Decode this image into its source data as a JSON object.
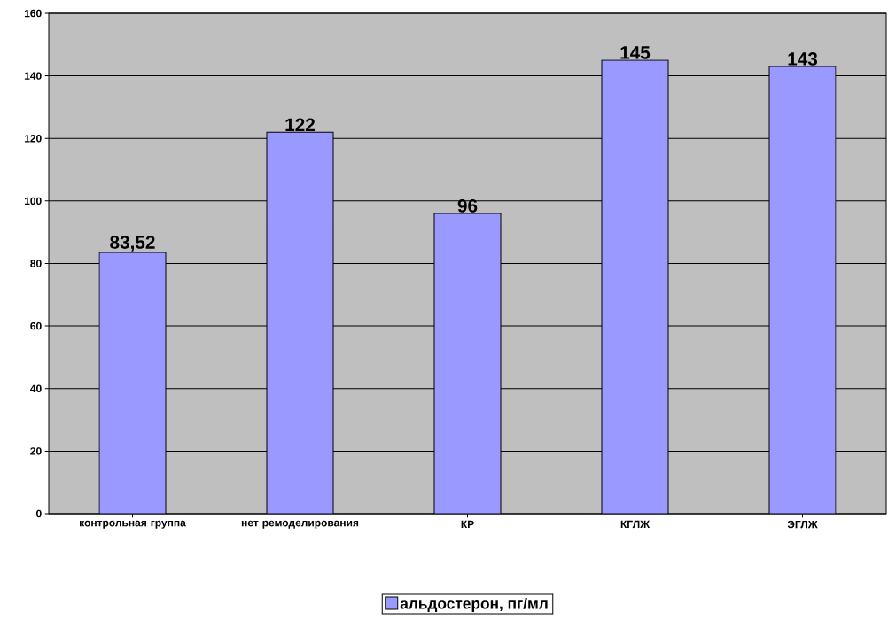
{
  "chart_data": {
    "type": "bar",
    "categories": [
      "контрольная группа",
      "нет ремоделирования",
      "КР",
      "КГЛЖ",
      "ЭГЛЖ"
    ],
    "series": [
      {
        "name": "альдостерон, пг/мл",
        "color": "#9999ff",
        "values": [
          83.52,
          122,
          96,
          145,
          143
        ],
        "value_labels": [
          "83,52",
          "122",
          "96",
          "145",
          "143"
        ]
      }
    ],
    "ylim": [
      0,
      160
    ],
    "yticks": [
      0,
      20,
      40,
      60,
      80,
      100,
      120,
      140,
      160
    ],
    "grid": "y",
    "legend": "bottom"
  }
}
